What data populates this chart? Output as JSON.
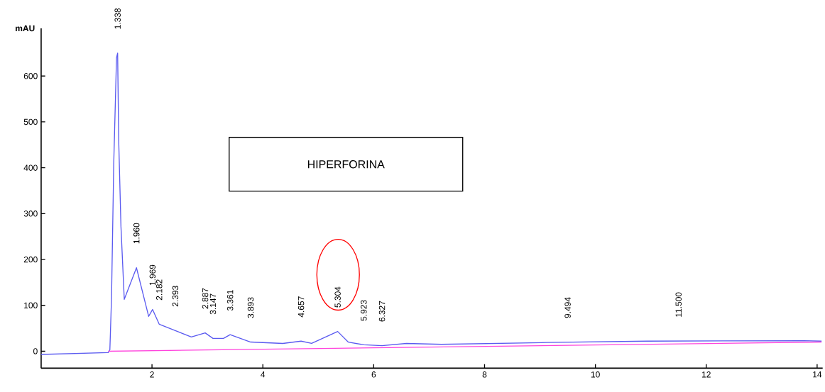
{
  "chart_data": {
    "type": "line",
    "ylabel": "mAU",
    "xlim": [
      0,
      14.1
    ],
    "ylim": [
      -37,
      704
    ],
    "xticks": [
      2,
      4,
      6,
      8,
      10,
      12,
      14
    ],
    "yticks": [
      0,
      100,
      200,
      300,
      400,
      500,
      600
    ],
    "series": [
      {
        "color": "#5b5bf0",
        "x": [
          0,
          1.21,
          1.24,
          1.27,
          1.31,
          1.36,
          1.38,
          1.4,
          1.44,
          1.5,
          1.72,
          1.94,
          2.01,
          2.13,
          2.42,
          2.71,
          2.96,
          3.1,
          3.29,
          3.41,
          3.78,
          4.36,
          4.69,
          4.88,
          5.35,
          5.54,
          5.82,
          6.15,
          6.59,
          7.22,
          9.13,
          10.93,
          13.76,
          14.08
        ],
        "values": [
          -7,
          -3,
          3,
          117,
          410,
          640,
          650,
          457,
          272,
          113,
          182,
          76,
          91,
          59,
          45,
          31,
          40,
          28,
          28,
          36,
          20,
          17,
          22,
          17,
          43,
          20,
          14,
          12,
          17,
          15,
          19,
          22,
          23,
          22
        ]
      },
      {
        "color": "#ff44dd",
        "x": [
          1.21,
          14.08
        ],
        "values": [
          0,
          20
        ]
      }
    ],
    "annotations": [
      "HIPERFORINA",
      {
        "text": "1.338",
        "x": 1.38,
        "y": 650
      },
      {
        "text": "1.960",
        "x": 1.72,
        "y": 182
      },
      {
        "text": "1.969",
        "x": 2.01,
        "y": 91
      },
      {
        "text": "2.182",
        "x": 2.13,
        "y": 59
      },
      {
        "text": "2.393",
        "x": 2.42,
        "y": 45
      },
      {
        "text": "2.887",
        "x": 2.96,
        "y": 40
      },
      {
        "text": "3.147",
        "x": 3.1,
        "y": 28
      },
      {
        "text": "3.361",
        "x": 3.41,
        "y": 36
      },
      {
        "text": "3.893",
        "x": 3.78,
        "y": 20
      },
      {
        "text": "4.657",
        "x": 4.69,
        "y": 22
      },
      {
        "text": "5.304",
        "x": 5.35,
        "y": 43
      },
      {
        "text": "5.923",
        "x": 5.82,
        "y": 14
      },
      {
        "text": "6.327",
        "x": 6.15,
        "y": 12
      },
      {
        "text": "9.494",
        "x": 9.5,
        "y": 20
      },
      {
        "text": "11.500",
        "x": 11.5,
        "y": 22
      }
    ]
  }
}
